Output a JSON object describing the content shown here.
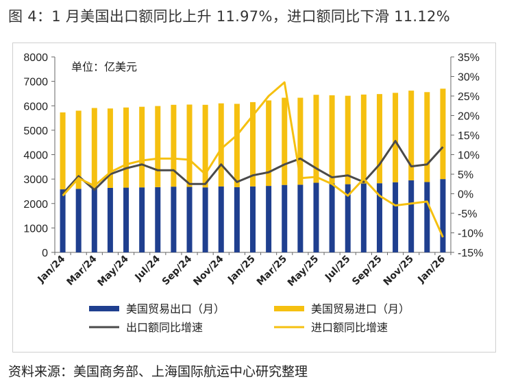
{
  "title": "图 4：1 月美国出口额同比上升 11.97%，进口额同比下滑 11.12%",
  "source": "资料来源：美国商务部、上海国际航运中心研究整理",
  "chart_data": {
    "type": "bar",
    "unit_label": "单位：亿美元",
    "categories": [
      "Jan/24",
      "Feb/24",
      "Mar/24",
      "Apr/24",
      "May/24",
      "Jun/24",
      "Jul/24",
      "Aug/24",
      "Sep/24",
      "Oct/24",
      "Nov/24",
      "Dec/24",
      "Jan/25",
      "Feb/25",
      "Mar/25",
      "Apr/25",
      "May/25",
      "Jun/25",
      "Jul/25",
      "Aug/25",
      "Sep/25",
      "Oct/25",
      "Nov/25",
      "Dec/25",
      "Jan/26"
    ],
    "x_tick_labels": [
      "Jan/24",
      "Mar/24",
      "May/24",
      "Jul/24",
      "Sep/24",
      "Nov/24",
      "Jan/25",
      "Mar/25",
      "May/25",
      "Jul/25",
      "Sep/25",
      "Nov/25",
      "Jan/26"
    ],
    "y_left": {
      "ylim": [
        0,
        8000
      ],
      "ticks": [
        "0",
        "1000",
        "2000",
        "3000",
        "4000",
        "5000",
        "6000",
        "7000",
        "8000"
      ]
    },
    "y_right": {
      "ylim": [
        -15,
        35
      ],
      "ticks": [
        "-15%",
        "-10%",
        "-5%",
        "0%",
        "5%",
        "10%",
        "15%",
        "20%",
        "25%",
        "30%",
        "35%"
      ]
    },
    "series": [
      {
        "name": "美国贸易出口（月）",
        "type": "bar",
        "color": "#1f3f8f",
        "axis": "left",
        "values": [
          2580,
          2600,
          2630,
          2640,
          2650,
          2660,
          2670,
          2690,
          2680,
          2660,
          2700,
          2670,
          2700,
          2720,
          2760,
          2770,
          2850,
          2820,
          2790,
          2820,
          2830,
          2870,
          2950,
          2880,
          3000
        ]
      },
      {
        "name": "美国贸易进口（月）",
        "type": "bar",
        "color": "#f5c010",
        "axis": "left",
        "values": [
          3150,
          3200,
          3280,
          3250,
          3280,
          3300,
          3320,
          3350,
          3370,
          3380,
          3400,
          3410,
          3450,
          3500,
          3570,
          3560,
          3600,
          3610,
          3620,
          3640,
          3650,
          3660,
          3670,
          3680,
          3700
        ]
      },
      {
        "name": "出口额同比增速",
        "type": "line",
        "color": "#4a4a4a",
        "axis": "right",
        "values": [
          0.0,
          4.5,
          1.0,
          5.0,
          6.5,
          7.5,
          6.0,
          6.0,
          2.5,
          2.5,
          7.5,
          3.0,
          4.7,
          5.5,
          7.5,
          9.0,
          6.5,
          4.2,
          4.7,
          3.0,
          7.5,
          13.5,
          7.0,
          7.5,
          11.97
        ]
      },
      {
        "name": "进口额同比增速",
        "type": "line",
        "color": "#f5c010",
        "axis": "right",
        "values": [
          -0.5,
          4.0,
          2.0,
          5.5,
          7.5,
          8.5,
          9.0,
          9.0,
          8.7,
          5.0,
          11.5,
          15.0,
          20.0,
          25.0,
          28.5,
          4.0,
          4.3,
          2.5,
          -0.5,
          3.8,
          -0.5,
          -3.0,
          -2.5,
          -2.0,
          -11.12
        ]
      }
    ],
    "legend_placement": "bottom",
    "grid": false
  }
}
